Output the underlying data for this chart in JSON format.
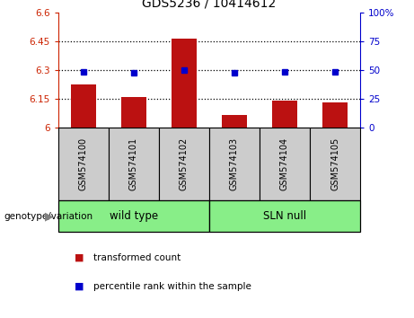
{
  "title": "GDS5236 / 10414612",
  "samples": [
    "GSM574100",
    "GSM574101",
    "GSM574102",
    "GSM574103",
    "GSM574104",
    "GSM574105"
  ],
  "bar_values": [
    6.225,
    6.16,
    6.465,
    6.065,
    6.14,
    6.13
  ],
  "dot_values": [
    6.291,
    6.285,
    6.3,
    6.285,
    6.291,
    6.291
  ],
  "bar_base": 6.0,
  "ylim_left": [
    6.0,
    6.6
  ],
  "ylim_right": [
    0,
    100
  ],
  "yticks_left": [
    6.0,
    6.15,
    6.3,
    6.45,
    6.6
  ],
  "yticks_right": [
    0,
    25,
    50,
    75,
    100
  ],
  "ytick_labels_left": [
    "6",
    "6.15",
    "6.3",
    "6.45",
    "6.6"
  ],
  "ytick_labels_right": [
    "0",
    "25",
    "50",
    "75",
    "100%"
  ],
  "hlines": [
    6.15,
    6.3,
    6.45
  ],
  "group_label_prefix": "genotype/variation",
  "bar_color": "#bb1111",
  "dot_color": "#0000cc",
  "legend_items": [
    {
      "color": "#bb1111",
      "label": "transformed count"
    },
    {
      "color": "#0000cc",
      "label": "percentile rank within the sample"
    }
  ],
  "grid_color": "black",
  "tick_color_left": "#cc2200",
  "tick_color_right": "#0000cc",
  "sample_area_color": "#cccccc",
  "group_area_color": "#88ee88"
}
